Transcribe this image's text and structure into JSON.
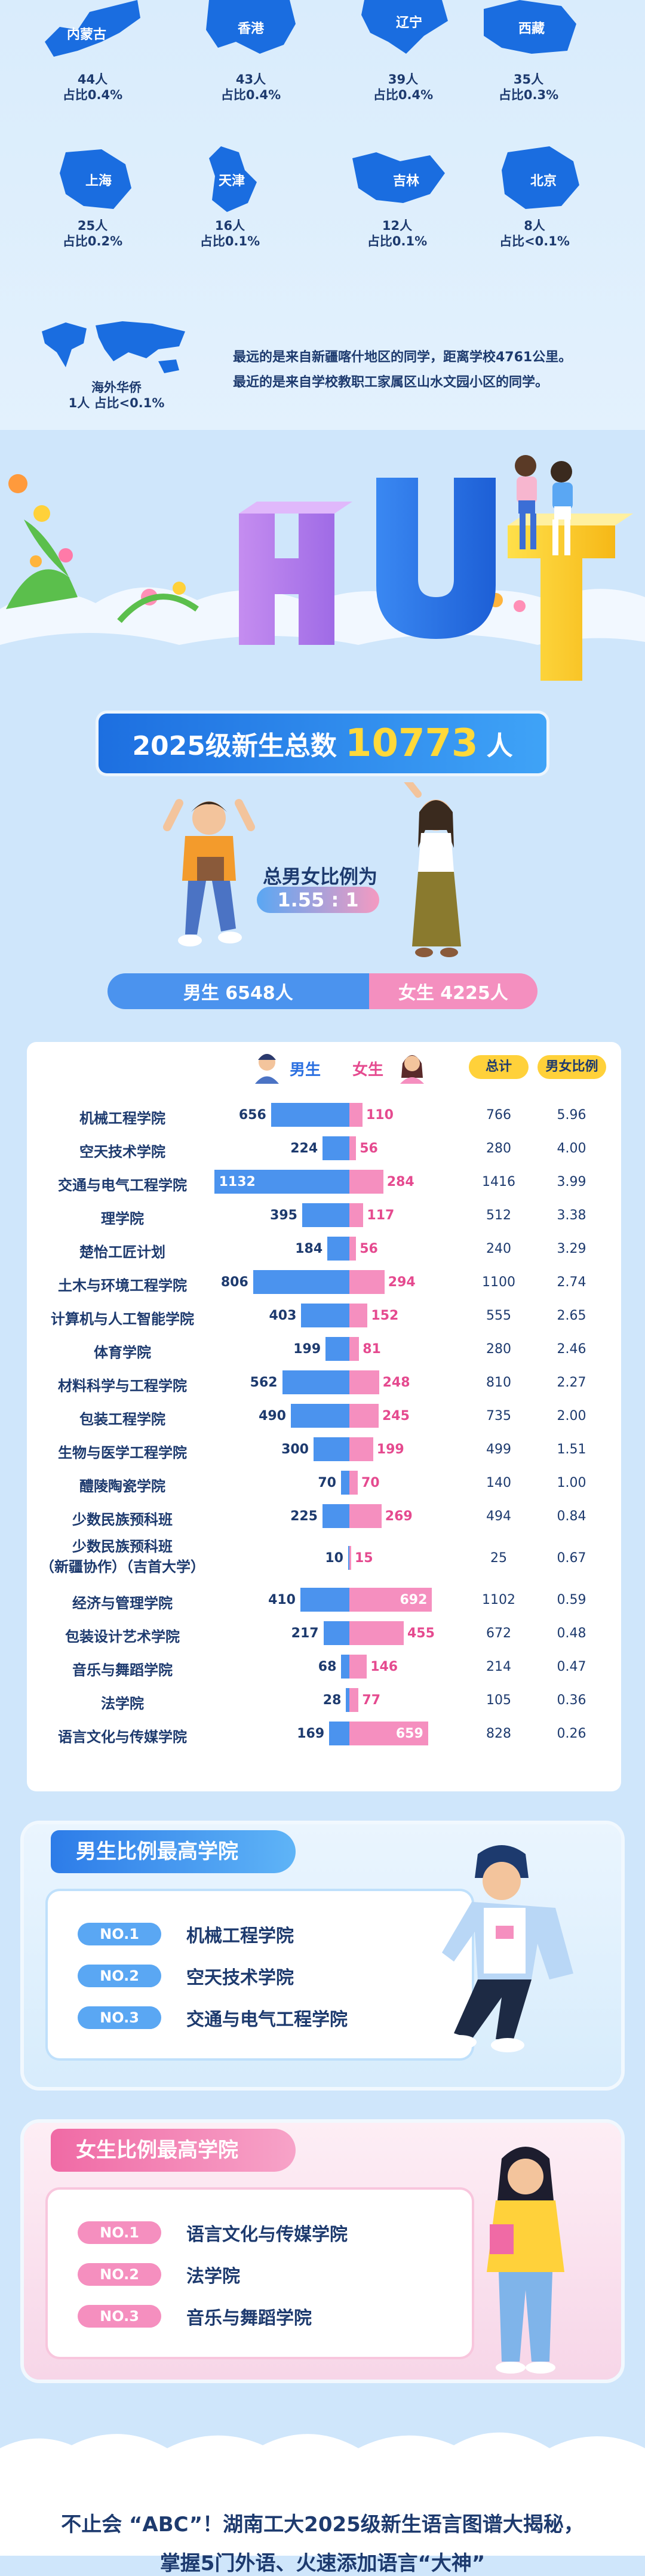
{
  "regions": [
    {
      "name": "内蒙古",
      "count": "44人",
      "share": "占比0.4%"
    },
    {
      "name": "香港",
      "count": "43人",
      "share": "占比0.4%"
    },
    {
      "name": "辽宁",
      "count": "39人",
      "share": "占比0.4%"
    },
    {
      "name": "西藏",
      "count": "35人",
      "share": "占比0.3%"
    },
    {
      "name": "上海",
      "count": "25人",
      "share": "占比0.2%"
    },
    {
      "name": "天津",
      "count": "16人",
      "share": "占比0.1%"
    },
    {
      "name": "吉林",
      "count": "12人",
      "share": "占比0.1%"
    },
    {
      "name": "北京",
      "count": "8人",
      "share": "占比<0.1%"
    }
  ],
  "overseas": {
    "name": "海外华侨",
    "stat": "1人 占比<0.1%"
  },
  "note": {
    "line1": "最远的是来自新疆喀什地区的同学，距离学校4761公里。",
    "line2": "最近的是来自学校教职工家属区山水文园小区的同学。"
  },
  "banner": {
    "letters": [
      "H",
      "U",
      "T"
    ]
  },
  "total": {
    "prefix": "2025级新生总数",
    "number": "10773",
    "suffix": "人",
    "ratio_label": "总男女比例为",
    "ratio": "1.55 : 1",
    "male_label": "男生 6548人",
    "female_label": "女生 4225人",
    "male_count": 6548,
    "female_count": 4225
  },
  "table": {
    "male_header": "男生",
    "female_header": "女生",
    "total_header": "总计",
    "ratio_header": "男女比例",
    "rows": [
      {
        "name": "机械工程学院",
        "m": 656,
        "f": 110,
        "t": "766",
        "r": "5.96"
      },
      {
        "name": "空天技术学院",
        "m": 224,
        "f": 56,
        "t": "280",
        "r": "4.00"
      },
      {
        "name": "交通与电气工程学院",
        "m": 1132,
        "f": 284,
        "t": "1416",
        "r": "3.99"
      },
      {
        "name": "理学院",
        "m": 395,
        "f": 117,
        "t": "512",
        "r": "3.38"
      },
      {
        "name": "楚怡工匠计划",
        "m": 184,
        "f": 56,
        "t": "240",
        "r": "3.29"
      },
      {
        "name": "土木与环境工程学院",
        "m": 806,
        "f": 294,
        "t": "1100",
        "r": "2.74"
      },
      {
        "name": "计算机与人工智能学院",
        "m": 403,
        "f": 152,
        "t": "555",
        "r": "2.65"
      },
      {
        "name": "体育学院",
        "m": 199,
        "f": 81,
        "t": "280",
        "r": "2.46"
      },
      {
        "name": "材料科学与工程学院",
        "m": 562,
        "f": 248,
        "t": "810",
        "r": "2.27"
      },
      {
        "name": "包装工程学院",
        "m": 490,
        "f": 245,
        "t": "735",
        "r": "2.00"
      },
      {
        "name": "生物与医学工程学院",
        "m": 300,
        "f": 199,
        "t": "499",
        "r": "1.51"
      },
      {
        "name": "醴陵陶瓷学院",
        "m": 70,
        "f": 70,
        "t": "140",
        "r": "1.00"
      },
      {
        "name": "少数民族预科班",
        "m": 225,
        "f": 269,
        "t": "494",
        "r": "0.84"
      },
      {
        "name": "少数民族预科班",
        "name2": "（新疆协作）（吉首大学）",
        "m": 10,
        "f": 15,
        "t": "25",
        "r": "0.67"
      },
      {
        "name": "经济与管理学院",
        "m": 410,
        "f": 692,
        "t": "1102",
        "r": "0.59"
      },
      {
        "name": "包装设计艺术学院",
        "m": 217,
        "f": 455,
        "t": "672",
        "r": "0.48"
      },
      {
        "name": "音乐与舞蹈学院",
        "m": 68,
        "f": 146,
        "t": "214",
        "r": "0.47"
      },
      {
        "name": "法学院",
        "m": 28,
        "f": 77,
        "t": "105",
        "r": "0.36"
      },
      {
        "name": "语言文化与传媒学院",
        "m": 169,
        "f": 659,
        "t": "828",
        "r": "0.26"
      }
    ]
  },
  "male_top": {
    "title": "男生比例最高学院",
    "items": [
      {
        "rank": "NO.1",
        "name": "机械工程学院"
      },
      {
        "rank": "NO.2",
        "name": "空天技术学院"
      },
      {
        "rank": "NO.3",
        "name": "交通与电气工程学院"
      }
    ]
  },
  "female_top": {
    "title": "女生比例最高学院",
    "items": [
      {
        "rank": "NO.1",
        "name": "语言文化与传媒学院"
      },
      {
        "rank": "NO.2",
        "name": "法学院"
      },
      {
        "rank": "NO.3",
        "name": "音乐与舞蹈学院"
      }
    ]
  },
  "footer": {
    "line1": "不止会 “ABC”！湖南工大2025级新生语言图谱大揭秘，",
    "line2": "掌握5门外语、火速添加语言“大神”"
  },
  "colors": {
    "male": "#4b93ee",
    "female": "#f58fbf",
    "map": "#1a6de0",
    "accent": "#ffd13a"
  }
}
